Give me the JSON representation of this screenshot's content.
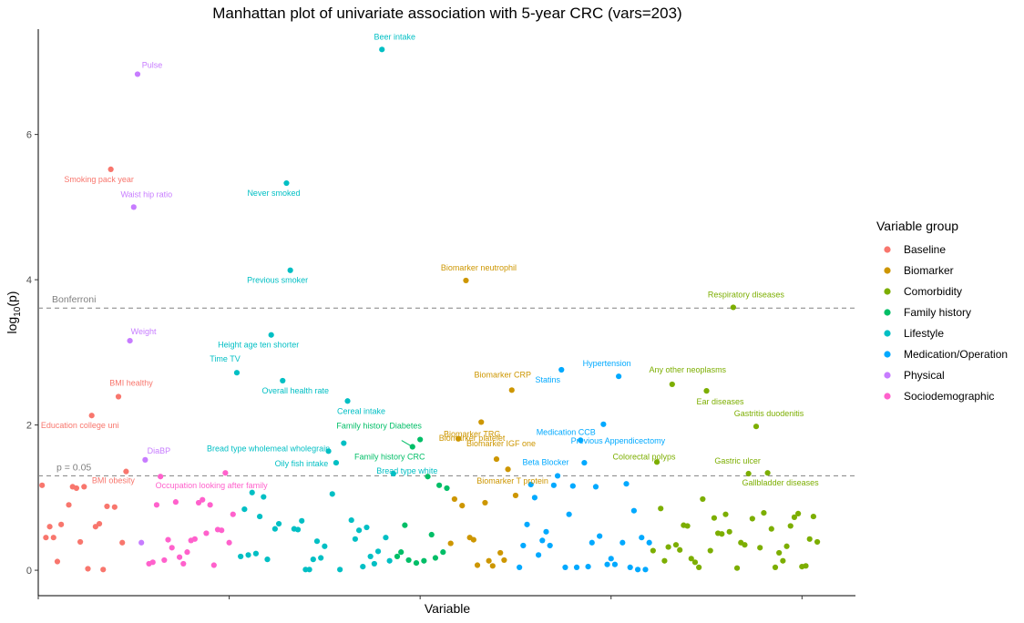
{
  "chart_data": {
    "type": "scatter",
    "title": "Manhattan plot of univariate association with 5-year CRC (vars=203)",
    "xlabel": "Variable",
    "ylabel_main": "log",
    "ylabel_sub": "10",
    "ylabel_tail": "(p)",
    "xlim": [
      0,
      214
    ],
    "ylim": [
      -0.35,
      7.45
    ],
    "yticks": [
      0,
      2,
      4,
      6
    ],
    "xticks": [
      0,
      50,
      100,
      150,
      200
    ],
    "grid": false,
    "legend_position": "right",
    "legend_title": "Variable group",
    "groups": [
      {
        "name": "Baseline",
        "color": "#F8766D"
      },
      {
        "name": "Biomarker",
        "color": "#CD9600"
      },
      {
        "name": "Comorbidity",
        "color": "#7CAE00"
      },
      {
        "name": "Family history",
        "color": "#00BE67"
      },
      {
        "name": "Lifestyle",
        "color": "#00BFC4"
      },
      {
        "name": "Medication/Operation",
        "color": "#00A9FF"
      },
      {
        "name": "Physical",
        "color": "#C77CFF"
      },
      {
        "name": "Sociodemographic",
        "color": "#FF61CC"
      }
    ],
    "reference_lines": [
      {
        "label": "Bonferroni",
        "y": 3.61
      },
      {
        "label": "p = 0.05",
        "y": 1.3
      }
    ],
    "points": [
      [
        1,
        1.17,
        0
      ],
      [
        2,
        0.45,
        0
      ],
      [
        3,
        0.6,
        0
      ],
      [
        4,
        0.45,
        0
      ],
      [
        5,
        0.12,
        0
      ],
      [
        6,
        0.63,
        0
      ],
      [
        8,
        0.9,
        0
      ],
      [
        9,
        1.15,
        0
      ],
      [
        10,
        1.13,
        0
      ],
      [
        11,
        0.39,
        0
      ],
      [
        12,
        1.15,
        0
      ],
      [
        13,
        0.02,
        0
      ],
      [
        14,
        2.13,
        0,
        "Education college uni"
      ],
      [
        15,
        0.6,
        0
      ],
      [
        16,
        0.64,
        0
      ],
      [
        17,
        0.01,
        0
      ],
      [
        18,
        0.88,
        0
      ],
      [
        19,
        5.52,
        0,
        "Smoking pack year"
      ],
      [
        20,
        0.87,
        0
      ],
      [
        21,
        2.39,
        0,
        "BMI healthy"
      ],
      [
        22,
        0.38,
        0
      ],
      [
        23,
        1.36,
        0,
        "BMI obesity"
      ],
      [
        24,
        3.16,
        6,
        "Weight"
      ],
      [
        25,
        5.0,
        6,
        "Waist hip ratio"
      ],
      [
        26,
        6.83,
        6,
        "Pulse"
      ],
      [
        27,
        0.38,
        6
      ],
      [
        28,
        1.52,
        6,
        "DiaBP"
      ],
      [
        29,
        0.09,
        7
      ],
      [
        30,
        0.11,
        7
      ],
      [
        31,
        0.9,
        7
      ],
      [
        32,
        1.29,
        7,
        "Occupation looking after family"
      ],
      [
        33,
        0.14,
        7
      ],
      [
        34,
        0.42,
        7
      ],
      [
        35,
        0.31,
        7
      ],
      [
        36,
        0.94,
        7
      ],
      [
        37,
        0.18,
        7
      ],
      [
        38,
        0.09,
        7
      ],
      [
        39,
        0.25,
        7
      ],
      [
        40,
        0.41,
        7
      ],
      [
        41,
        0.43,
        7
      ],
      [
        42,
        0.93,
        7
      ],
      [
        43,
        0.97,
        7
      ],
      [
        44,
        0.51,
        7
      ],
      [
        45,
        0.9,
        7
      ],
      [
        46,
        0.07,
        7
      ],
      [
        47,
        0.56,
        7
      ],
      [
        48,
        0.55,
        7
      ],
      [
        49,
        1.34,
        7
      ],
      [
        50,
        0.38,
        7
      ],
      [
        51,
        0.77,
        7
      ],
      [
        52,
        2.72,
        4,
        "Time TV"
      ],
      [
        53,
        0.19,
        4
      ],
      [
        54,
        0.84,
        4
      ],
      [
        55,
        0.21,
        4
      ],
      [
        56,
        1.07,
        4
      ],
      [
        57,
        0.23,
        4
      ],
      [
        58,
        0.74,
        4
      ],
      [
        59,
        1.01,
        4
      ],
      [
        60,
        0.15,
        4
      ],
      [
        61,
        3.24,
        4,
        "Height age ten shorter"
      ],
      [
        62,
        0.57,
        4
      ],
      [
        63,
        0.64,
        4
      ],
      [
        64,
        2.61,
        4,
        "Overall health rate"
      ],
      [
        65,
        5.33,
        4,
        "Never smoked"
      ],
      [
        66,
        4.13,
        4,
        "Previous smoker"
      ],
      [
        67,
        0.57,
        4
      ],
      [
        68,
        0.56,
        4
      ],
      [
        69,
        0.68,
        4
      ],
      [
        70,
        0.01,
        4
      ],
      [
        71,
        0.01,
        4
      ],
      [
        72,
        0.15,
        4
      ],
      [
        73,
        0.4,
        4
      ],
      [
        74,
        0.17,
        4
      ],
      [
        75,
        0.33,
        4
      ],
      [
        76,
        1.64,
        4,
        "Bread type wholemeal wholegrain"
      ],
      [
        77,
        1.05,
        4
      ],
      [
        78,
        1.48,
        4,
        "Oily fish intake"
      ],
      [
        79,
        0.01,
        4
      ],
      [
        80,
        1.75,
        4
      ],
      [
        81,
        2.33,
        4,
        "Cereal intake"
      ],
      [
        82,
        0.69,
        4
      ],
      [
        83,
        0.43,
        4
      ],
      [
        84,
        0.55,
        4
      ],
      [
        85,
        0.05,
        4
      ],
      [
        86,
        0.59,
        4
      ],
      [
        87,
        0.19,
        4
      ],
      [
        88,
        0.09,
        4
      ],
      [
        89,
        0.26,
        4
      ],
      [
        90,
        7.17,
        4,
        "Beer intake"
      ],
      [
        91,
        0.45,
        4
      ],
      [
        92,
        0.13,
        4
      ],
      [
        93,
        1.33,
        4,
        "Bread type white"
      ],
      [
        94,
        0.19,
        3
      ],
      [
        95,
        0.25,
        3
      ],
      [
        96,
        0.62,
        3
      ],
      [
        97,
        0.14,
        3
      ],
      [
        98,
        1.7,
        3,
        "Family history CRC"
      ],
      [
        99,
        0.1,
        3
      ],
      [
        100,
        1.8,
        3,
        "Family history Diabetes"
      ],
      [
        101,
        0.13,
        3
      ],
      [
        102,
        1.29,
        3
      ],
      [
        103,
        0.49,
        3
      ],
      [
        104,
        0.17,
        3
      ],
      [
        105,
        1.17,
        3
      ],
      [
        106,
        0.25,
        3
      ],
      [
        107,
        1.13,
        3
      ],
      [
        108,
        0.37,
        1
      ],
      [
        109,
        0.98,
        1
      ],
      [
        110,
        1.81,
        1,
        "Biomarker platelet"
      ],
      [
        111,
        0.89,
        1
      ],
      [
        112,
        3.99,
        1,
        "Biomarker neutrophil"
      ],
      [
        113,
        0.45,
        1
      ],
      [
        114,
        0.42,
        1
      ],
      [
        115,
        0.07,
        1
      ],
      [
        116,
        2.04,
        1,
        "Biomarker TRG"
      ],
      [
        117,
        0.93,
        1
      ],
      [
        118,
        0.13,
        1
      ],
      [
        119,
        0.06,
        1
      ],
      [
        120,
        1.53,
        1,
        "Biomarker IGF one"
      ],
      [
        121,
        0.24,
        1
      ],
      [
        122,
        0.14,
        1
      ],
      [
        123,
        1.39,
        1,
        "Biomarker T protein"
      ],
      [
        124,
        2.48,
        1,
        "Biomarker CRP"
      ],
      [
        125,
        1.03,
        1
      ],
      [
        126,
        0.04,
        5
      ],
      [
        127,
        0.34,
        5
      ],
      [
        128,
        0.63,
        5
      ],
      [
        129,
        1.18,
        5
      ],
      [
        130,
        1.0,
        5
      ],
      [
        131,
        0.21,
        5
      ],
      [
        132,
        0.41,
        5
      ],
      [
        133,
        0.53,
        5
      ],
      [
        134,
        0.34,
        5
      ],
      [
        135,
        1.17,
        5
      ],
      [
        136,
        1.3,
        5,
        "Beta Blocker"
      ],
      [
        137,
        2.76,
        5,
        "Statins"
      ],
      [
        138,
        0.04,
        5
      ],
      [
        139,
        0.77,
        5
      ],
      [
        140,
        1.16,
        5
      ],
      [
        141,
        0.04,
        5
      ],
      [
        142,
        1.79,
        5,
        "Medication CCB"
      ],
      [
        143,
        1.48,
        5,
        "Previous Appendicectomy"
      ],
      [
        144,
        0.05,
        5
      ],
      [
        145,
        0.38,
        5
      ],
      [
        146,
        1.15,
        5
      ],
      [
        147,
        0.47,
        5
      ],
      [
        148,
        2.01,
        5
      ],
      [
        149,
        0.08,
        5
      ],
      [
        150,
        0.16,
        5
      ],
      [
        151,
        0.08,
        5
      ],
      [
        152,
        2.67,
        5,
        "Hypertension"
      ],
      [
        153,
        0.38,
        5
      ],
      [
        154,
        1.19,
        5
      ],
      [
        155,
        0.04,
        5
      ],
      [
        156,
        0.82,
        5
      ],
      [
        157,
        0.01,
        5
      ],
      [
        158,
        0.45,
        5
      ],
      [
        159,
        0.01,
        5
      ],
      [
        160,
        0.38,
        5
      ],
      [
        161,
        0.27,
        2
      ],
      [
        162,
        1.49,
        2,
        "Colorectal polyps"
      ],
      [
        163,
        0.85,
        2
      ],
      [
        164,
        0.13,
        2
      ],
      [
        165,
        0.32,
        2
      ],
      [
        166,
        2.56,
        2,
        "Any other neoplasms"
      ],
      [
        167,
        0.35,
        2
      ],
      [
        168,
        0.28,
        2
      ],
      [
        169,
        0.62,
        2
      ],
      [
        170,
        0.61,
        2
      ],
      [
        171,
        0.16,
        2
      ],
      [
        172,
        0.11,
        2
      ],
      [
        173,
        0.04,
        2
      ],
      [
        174,
        0.98,
        2
      ],
      [
        175,
        2.47,
        2,
        "Ear diseases"
      ],
      [
        176,
        0.27,
        2
      ],
      [
        177,
        0.72,
        2
      ],
      [
        178,
        0.51,
        2
      ],
      [
        179,
        0.5,
        2
      ],
      [
        180,
        0.77,
        2
      ],
      [
        181,
        0.53,
        2
      ],
      [
        182,
        3.62,
        2,
        "Respiratory diseases"
      ],
      [
        183,
        0.03,
        2
      ],
      [
        184,
        0.38,
        2
      ],
      [
        185,
        0.35,
        2
      ],
      [
        186,
        1.33,
        2,
        "Gastric ulcer"
      ],
      [
        187,
        0.71,
        2
      ],
      [
        188,
        1.98,
        2,
        "Gastritis duodenitis"
      ],
      [
        189,
        0.31,
        2
      ],
      [
        190,
        0.79,
        2
      ],
      [
        191,
        1.34,
        2,
        "Gallbladder diseases"
      ],
      [
        192,
        0.57,
        2
      ],
      [
        193,
        0.04,
        2
      ],
      [
        194,
        0.24,
        2
      ],
      [
        195,
        0.13,
        2
      ],
      [
        196,
        0.33,
        2
      ],
      [
        197,
        0.61,
        2
      ],
      [
        198,
        0.73,
        2
      ],
      [
        199,
        0.78,
        2
      ],
      [
        200,
        0.05,
        2
      ],
      [
        201,
        0.06,
        2
      ],
      [
        202,
        0.43,
        2
      ],
      [
        203,
        0.74,
        2
      ],
      [
        204,
        0.39,
        2
      ]
    ]
  }
}
